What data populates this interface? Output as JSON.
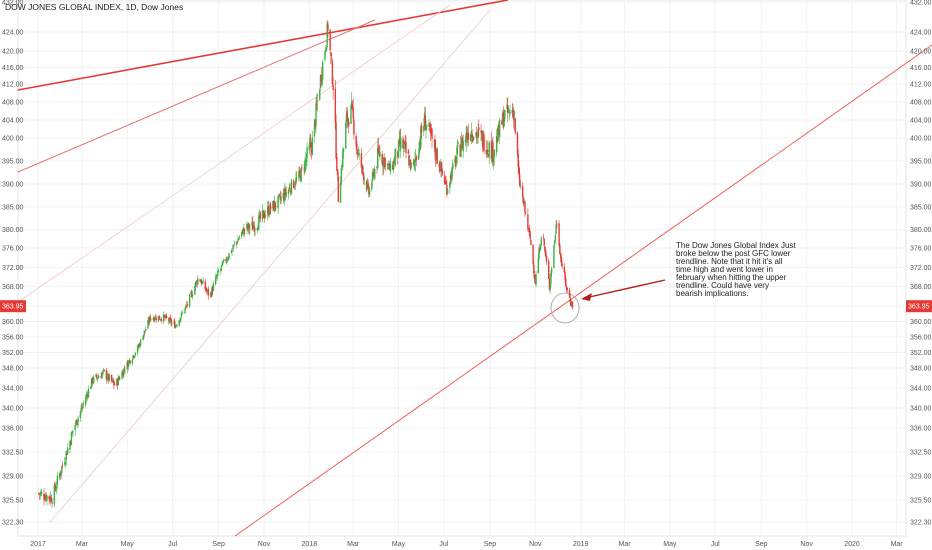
{
  "chart_title": "DOW JONES GLOBAL INDEX, 1D, Dow Jones",
  "annotation": "The Dow Jones Global Index Just broke below the post GFC lower trendline. Note that it hit it's all time high and went lower in february when hitting the upper trendline. Could have very bearish implications.",
  "chart_data": {
    "type": "candlestick",
    "symbol": "DOW JONES GLOBAL INDEX",
    "interval": "1D",
    "exchange": "Dow Jones",
    "last_price": "363.95",
    "y_tick_labels": [
      "432.00",
      "424.00",
      "420.00",
      "416.00",
      "412.00",
      "408.00",
      "404.00",
      "400.00",
      "395.00",
      "390.00",
      "385.00",
      "380.00",
      "376.00",
      "372.00",
      "368.00",
      "364.00",
      "360.00",
      "356.00",
      "352.00",
      "348.00",
      "344.00",
      "340.00",
      "336.00",
      "332.50",
      "329.00",
      "325.50",
      "322.30"
    ],
    "x_tick_labels": [
      "2017",
      "Mar",
      "May",
      "Jul",
      "Sep",
      "Nov",
      "2018",
      "Mar",
      "May",
      "Jul",
      "Sep",
      "Nov",
      "2019",
      "Mar",
      "May",
      "Jul",
      "Sep",
      "Nov",
      "2020",
      "Mar"
    ],
    "price_path": [
      [
        "2017-01-01",
        326.5
      ],
      [
        "2017-01-20",
        325.8
      ],
      [
        "2017-02-10",
        333
      ],
      [
        "2017-03-01",
        340
      ],
      [
        "2017-03-15",
        345.5
      ],
      [
        "2017-03-30",
        347
      ],
      [
        "2017-04-15",
        344.5
      ],
      [
        "2017-05-01",
        349
      ],
      [
        "2017-05-15",
        353
      ],
      [
        "2017-06-01",
        361
      ],
      [
        "2017-06-20",
        361
      ],
      [
        "2017-07-05",
        359
      ],
      [
        "2017-07-20",
        364
      ],
      [
        "2017-08-05",
        370
      ],
      [
        "2017-08-20",
        366
      ],
      [
        "2017-09-01",
        371
      ],
      [
        "2017-09-20",
        376
      ],
      [
        "2017-10-05",
        380
      ],
      [
        "2017-10-20",
        381
      ],
      [
        "2017-11-05",
        384
      ],
      [
        "2017-11-20",
        386
      ],
      [
        "2017-12-05",
        389
      ],
      [
        "2017-12-20",
        392
      ],
      [
        "2018-01-05",
        399
      ],
      [
        "2018-01-15",
        412
      ],
      [
        "2018-01-26",
        425.5
      ],
      [
        "2018-02-02",
        412
      ],
      [
        "2018-02-09",
        387
      ],
      [
        "2018-02-20",
        404
      ],
      [
        "2018-02-27",
        406
      ],
      [
        "2018-03-08",
        396
      ],
      [
        "2018-03-22",
        388
      ],
      [
        "2018-04-05",
        397
      ],
      [
        "2018-04-20",
        393
      ],
      [
        "2018-05-05",
        399
      ],
      [
        "2018-05-20",
        393
      ],
      [
        "2018-06-05",
        404
      ],
      [
        "2018-06-20",
        397
      ],
      [
        "2018-07-05",
        389
      ],
      [
        "2018-07-20",
        397
      ],
      [
        "2018-08-05",
        402
      ],
      [
        "2018-08-20",
        400
      ],
      [
        "2018-09-05",
        397
      ],
      [
        "2018-09-20",
        405
      ],
      [
        "2018-10-03",
        406
      ],
      [
        "2018-10-10",
        391
      ],
      [
        "2018-10-25",
        378
      ],
      [
        "2018-11-01",
        369
      ],
      [
        "2018-11-10",
        380
      ],
      [
        "2018-11-20",
        368
      ],
      [
        "2018-11-30",
        382
      ],
      [
        "2018-12-05",
        374
      ],
      [
        "2018-12-14",
        367
      ],
      [
        "2018-12-21",
        364
      ]
    ]
  }
}
